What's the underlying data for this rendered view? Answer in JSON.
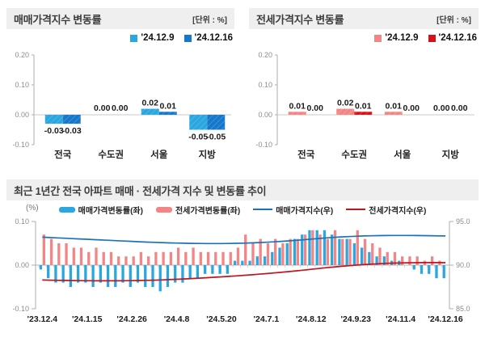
{
  "colors": {
    "light_blue": "#2AA7DF",
    "dark_blue": "#1678CB",
    "light_pink": "#F48585",
    "dark_red": "#D4121A",
    "sale_index_line": "#1C72B8",
    "jeonse_index_line": "#BE161C",
    "header_bg": "#EFEFEF",
    "axis": "#ADADAD",
    "baseline": "#C8C8C8",
    "tick_text": "#8C8C8C",
    "label_text": "#1A1A1A"
  },
  "sale_panel": {
    "title": "매매가격지수 변동률",
    "unit": "[단위 : %]",
    "legend": [
      {
        "label": "'24.12.9",
        "color_key": "light_blue"
      },
      {
        "label": "'24.12.16",
        "color_key": "dark_blue"
      }
    ]
  },
  "jeonse_panel": {
    "title": "전세가격지수 변동률",
    "unit": "[단위 : %]",
    "legend": [
      {
        "label": "'24.12.9",
        "color_key": "light_pink"
      },
      {
        "label": "'24.12.16",
        "color_key": "dark_red"
      }
    ]
  },
  "trend_panel": {
    "title": "최근 1년간 전국 아파트 매매 · 전세가격 지수 및 변동률 추이",
    "axis_unit": "(%)",
    "legend": [
      {
        "label": "매매가격변동률(좌)",
        "type": "bar",
        "color_key": "light_blue"
      },
      {
        "label": "전세가격변동률(좌)",
        "type": "bar",
        "color_key": "light_pink"
      },
      {
        "label": "매매가격지수(우)",
        "type": "line",
        "color_key": "sale_index_line"
      },
      {
        "label": "전세가격지수(우)",
        "type": "line",
        "color_key": "jeonse_index_line"
      }
    ]
  },
  "chart_data": [
    {
      "type": "bar",
      "title": "매매가격지수 변동률",
      "unit": "%",
      "categories": [
        "전국",
        "수도권",
        "서울",
        "지방"
      ],
      "series": [
        {
          "name": "'24.12.9",
          "color_key": "light_blue",
          "values": [
            -0.03,
            0.0,
            0.02,
            -0.05
          ]
        },
        {
          "name": "'24.12.16",
          "color_key": "dark_blue",
          "values": [
            -0.03,
            0.0,
            0.01,
            -0.05
          ]
        }
      ],
      "ylim": [
        -0.1,
        0.2
      ],
      "yticks": [
        0.2,
        0.1,
        0.0,
        -0.1
      ],
      "grid": false,
      "legend_position": "top-right",
      "data_labels": true
    },
    {
      "type": "bar",
      "title": "전세가격지수 변동률",
      "unit": "%",
      "categories": [
        "전국",
        "수도권",
        "서울",
        "지방"
      ],
      "series": [
        {
          "name": "'24.12.9",
          "color_key": "light_pink",
          "values": [
            0.01,
            0.02,
            0.01,
            0.0
          ]
        },
        {
          "name": "'24.12.16",
          "color_key": "dark_red",
          "values": [
            0.0,
            0.01,
            0.0,
            0.0
          ]
        }
      ],
      "ylim": [
        -0.1,
        0.2
      ],
      "yticks": [
        0.2,
        0.1,
        0.0,
        -0.1
      ],
      "grid": false,
      "legend_position": "top-right",
      "data_labels": true
    },
    {
      "type": "bar+line",
      "title": "최근 1년간 전국 아파트 매매 · 전세가격 지수 및 변동률 추이",
      "x_tick_labels": [
        "'23.12.4",
        "'24.1.15",
        "'24.2.26",
        "'24.4.8",
        "'24.5.20",
        "'24.7.1",
        "'24.8.12",
        "'24.9.23",
        "'24.11.4",
        "'24.12.16"
      ],
      "x_tick_weeks": [
        0,
        6,
        12,
        18,
        24,
        30,
        36,
        42,
        48,
        54
      ],
      "left_axis_label": "(%)",
      "left_ylim": [
        -0.1,
        0.1
      ],
      "left_yticks": [
        0.1,
        0.0,
        -0.1
      ],
      "right_ylim": [
        85.0,
        95.0
      ],
      "right_yticks": [
        95.0,
        90.0,
        85.0
      ],
      "legend_position": "top-center",
      "bar_series": [
        {
          "name": "매매가격변동률(좌)",
          "axis": "left",
          "color_key": "light_blue",
          "values": [
            -0.01,
            -0.03,
            -0.04,
            -0.04,
            -0.05,
            -0.04,
            -0.04,
            -0.05,
            -0.04,
            -0.05,
            -0.05,
            -0.04,
            -0.05,
            -0.04,
            -0.05,
            -0.05,
            -0.06,
            -0.05,
            -0.04,
            -0.04,
            -0.03,
            -0.03,
            -0.02,
            -0.02,
            -0.02,
            -0.02,
            0.01,
            0.01,
            0.01,
            0.02,
            0.02,
            0.03,
            0.04,
            0.05,
            0.06,
            0.07,
            0.08,
            0.08,
            0.08,
            0.07,
            0.06,
            0.06,
            0.05,
            0.04,
            0.03,
            0.02,
            0.02,
            0.01,
            0.01,
            0.0,
            -0.01,
            -0.02,
            -0.02,
            -0.03,
            -0.03
          ]
        },
        {
          "name": "전세가격변동률(좌)",
          "axis": "left",
          "color_key": "light_pink",
          "values": [
            0.07,
            0.06,
            0.05,
            0.05,
            0.04,
            0.04,
            0.03,
            0.04,
            0.03,
            0.03,
            0.02,
            0.02,
            0.02,
            0.03,
            0.02,
            0.03,
            0.03,
            0.03,
            0.04,
            0.03,
            0.04,
            0.03,
            0.03,
            0.03,
            0.03,
            0.03,
            0.04,
            0.07,
            0.05,
            0.06,
            0.05,
            0.06,
            0.05,
            0.06,
            0.06,
            0.07,
            0.08,
            0.07,
            0.06,
            0.08,
            0.06,
            0.06,
            0.08,
            0.06,
            0.05,
            0.04,
            0.03,
            0.03,
            0.02,
            0.02,
            0.02,
            0.01,
            0.02,
            0.01,
            0.0
          ]
        }
      ],
      "line_series": [
        {
          "name": "매매가격지수(우)",
          "axis": "right",
          "color_key": "sale_index_line",
          "values": [
            93.2,
            93.16,
            93.12,
            93.08,
            93.04,
            93.0,
            92.96,
            92.92,
            92.88,
            92.84,
            92.8,
            92.76,
            92.72,
            92.68,
            92.64,
            92.61,
            92.58,
            92.55,
            92.53,
            92.51,
            92.49,
            92.48,
            92.47,
            92.47,
            92.47,
            92.48,
            92.5,
            92.52,
            92.55,
            92.58,
            92.62,
            92.67,
            92.72,
            92.78,
            92.84,
            92.91,
            92.98,
            93.05,
            93.12,
            93.18,
            93.23,
            93.27,
            93.31,
            93.34,
            93.36,
            93.38,
            93.39,
            93.4,
            93.4,
            93.4,
            93.39,
            93.38,
            93.37,
            93.35,
            93.34
          ]
        },
        {
          "name": "전세가격지수(우)",
          "axis": "right",
          "color_key": "jeonse_index_line",
          "values": [
            88.3,
            88.28,
            88.26,
            88.25,
            88.23,
            88.22,
            88.21,
            88.2,
            88.2,
            88.2,
            88.2,
            88.21,
            88.22,
            88.24,
            88.26,
            88.28,
            88.31,
            88.34,
            88.38,
            88.42,
            88.46,
            88.51,
            88.56,
            88.61,
            88.66,
            88.71,
            88.77,
            88.83,
            88.89,
            88.96,
            89.03,
            89.1,
            89.18,
            89.26,
            89.34,
            89.43,
            89.52,
            89.61,
            89.7,
            89.78,
            89.86,
            89.93,
            90.0,
            90.06,
            90.11,
            90.16,
            90.2,
            90.23,
            90.25,
            90.27,
            90.28,
            90.29,
            90.29,
            90.29,
            90.28
          ]
        }
      ]
    }
  ]
}
